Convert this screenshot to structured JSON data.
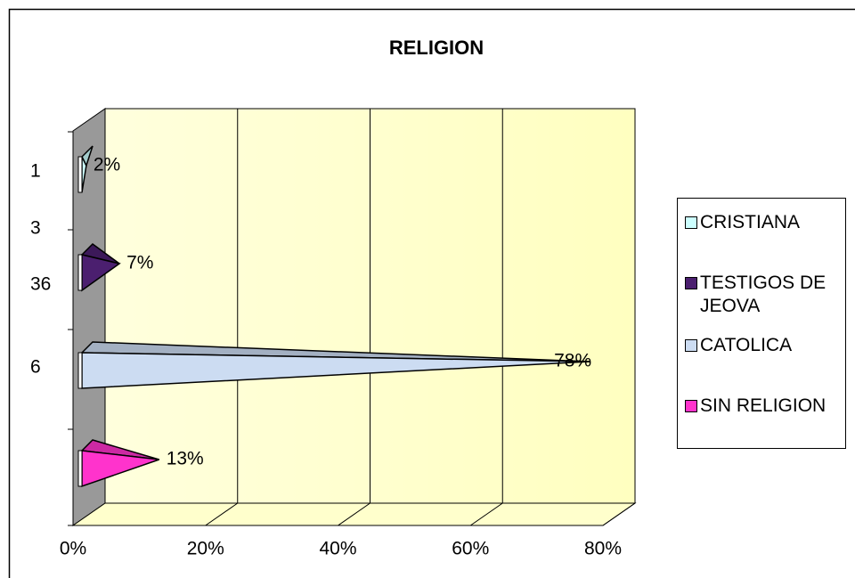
{
  "chart_data": {
    "type": "pyramid-bar",
    "title": "RELIGION",
    "categories": [
      "1",
      "3",
      "36",
      "6"
    ],
    "series": [
      {
        "name": "CRISTIANA",
        "color": "#ccffff",
        "values": [
          2,
          null,
          null,
          null
        ],
        "value_labels": [
          "2%",
          null,
          null,
          null
        ]
      },
      {
        "name": "TESTIGOS DE JEOVA",
        "color": "#4b1f6f",
        "values": [
          null,
          7,
          null,
          null
        ],
        "value_labels": [
          null,
          "7%",
          null,
          null
        ]
      },
      {
        "name": "CATOLICA",
        "color": "#ccdcf2",
        "values": [
          null,
          null,
          78,
          null
        ],
        "value_labels": [
          null,
          null,
          "78%",
          null
        ]
      },
      {
        "name": "SIN RELIGION",
        "color": "#ff33cc",
        "values": [
          null,
          null,
          null,
          13
        ],
        "value_labels": [
          null,
          null,
          null,
          "13%"
        ]
      }
    ],
    "xlim": [
      0,
      80
    ],
    "xticks": [
      {
        "value": 0,
        "label": "0%"
      },
      {
        "value": 20,
        "label": "20%"
      },
      {
        "value": 40,
        "label": "40%"
      },
      {
        "value": 60,
        "label": "60%"
      },
      {
        "value": 80,
        "label": "80%"
      }
    ],
    "grid": true
  }
}
